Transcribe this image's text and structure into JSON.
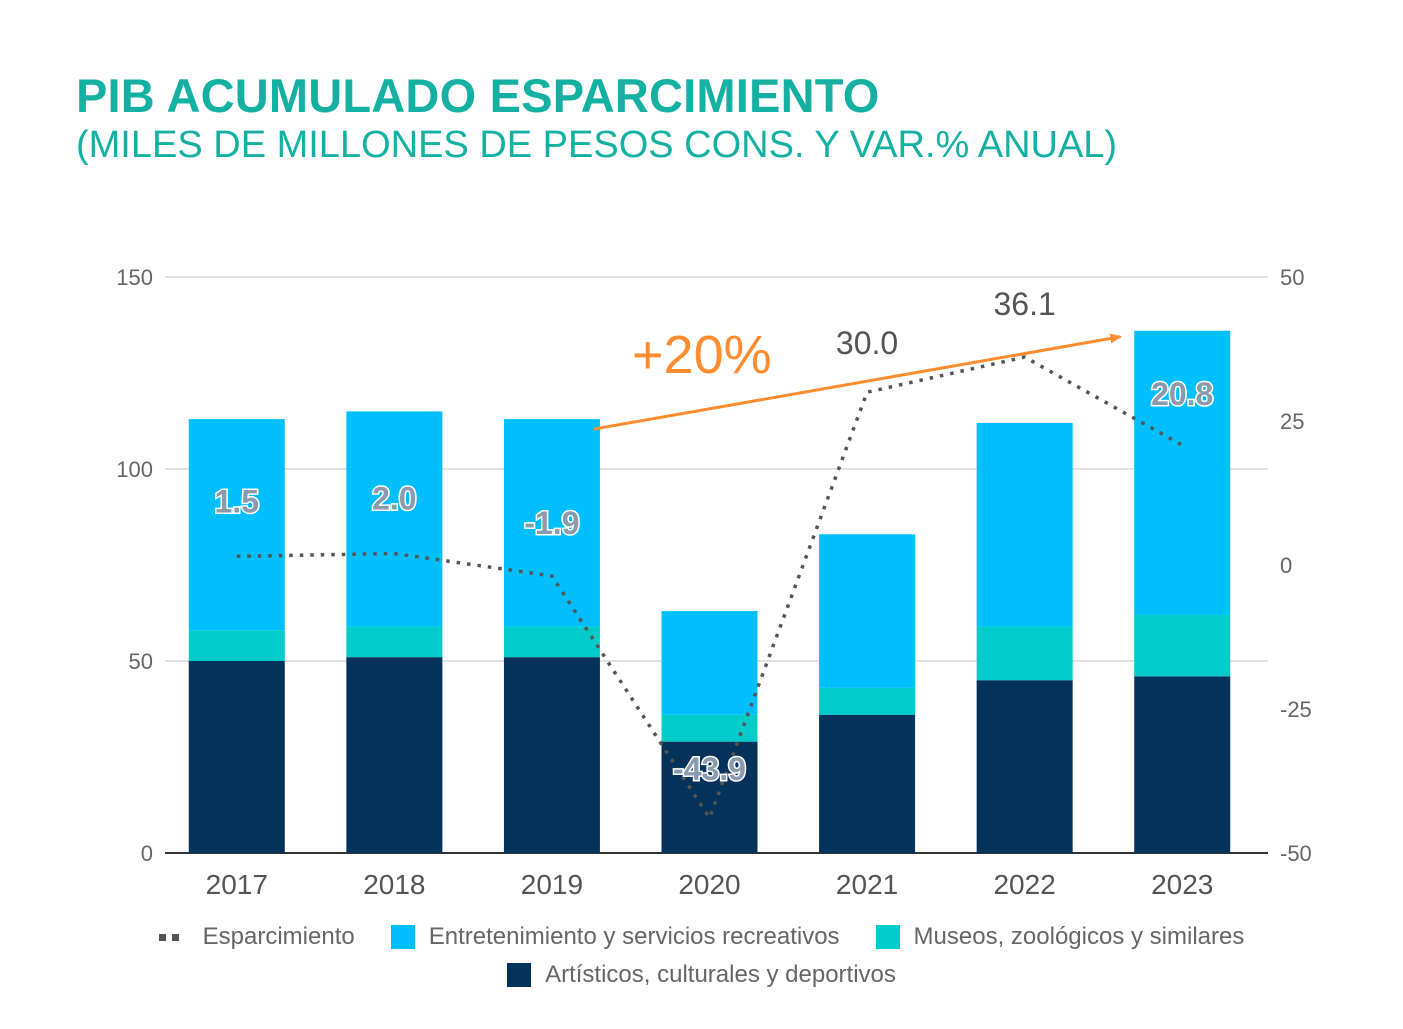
{
  "header": {
    "title": "PIB ACUMULADO ESPARCIMIENTO",
    "subtitle": "(MILES DE MILLONES DE PESOS CONS. Y VAR.% ANUAL)"
  },
  "chart_data": {
    "type": "bar",
    "stacked": true,
    "categories": [
      "2017",
      "2018",
      "2019",
      "2020",
      "2021",
      "2022",
      "2023"
    ],
    "ylim": [
      0,
      150
    ],
    "yticks": [
      "0",
      "50",
      "100",
      "150"
    ],
    "y2lim": [
      -50,
      50
    ],
    "y2ticks": [
      "-50",
      "-25",
      "0",
      "25",
      "50"
    ],
    "grid": true,
    "legend_position": "bottom",
    "series": [
      {
        "name": "Artísticos, culturales y deportivos",
        "color": "#03325a",
        "values": [
          50,
          51,
          51,
          29,
          36,
          45,
          46
        ]
      },
      {
        "name": "Museos, zoológicos y similares",
        "color": "#00cccc",
        "values": [
          8,
          8,
          8,
          7,
          7,
          14,
          16
        ]
      },
      {
        "name": "Entretenimiento y servicios recreativos",
        "color": "#00bfff",
        "values": [
          55,
          56,
          54,
          27,
          40,
          53,
          74
        ]
      }
    ],
    "line_series": {
      "name": "Esparcimiento",
      "axis": "right",
      "color": "#555555",
      "values": [
        1.5,
        2.0,
        -1.9,
        -43.9,
        30.0,
        36.1,
        20.8
      ],
      "labels": [
        "1.5",
        "2.0",
        "-1.9",
        "-43.9",
        "30.0",
        "36.1",
        "20.8"
      ]
    },
    "annotation": {
      "text": "+20%",
      "color": "#ff8c2e",
      "from": "2019",
      "to": "2023"
    }
  },
  "legend": {
    "items": [
      {
        "label": "Esparcimiento",
        "kind": "dots",
        "color": "#555555"
      },
      {
        "label": "Entretenimiento y servicios recreativos",
        "kind": "box",
        "color": "#00bfff"
      },
      {
        "label": "Museos, zoológicos y similares",
        "kind": "box",
        "color": "#00cccc"
      },
      {
        "label": "Artísticos, culturales y deportivos",
        "kind": "box",
        "color": "#03325a"
      }
    ]
  }
}
